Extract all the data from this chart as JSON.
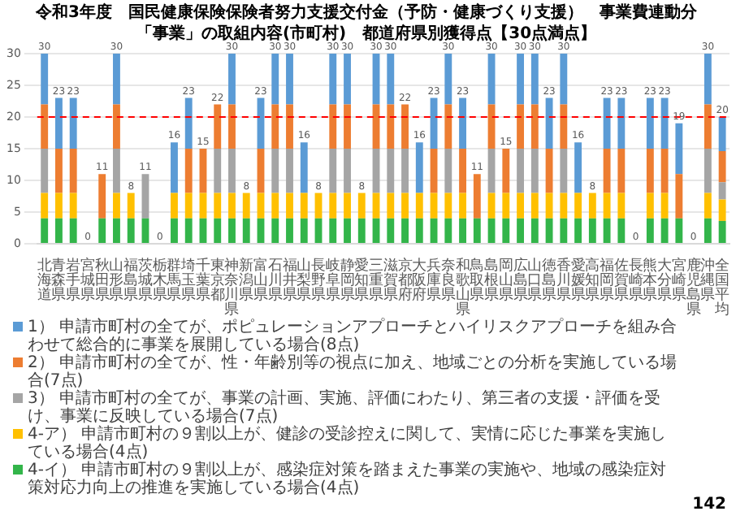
{
  "chart_data": {
    "type": "bar",
    "stacked": true,
    "title": "令和3年度　国民健康保険保険者努力支援交付金（予防・健康づくり支援）　事業費連動分",
    "subtitle": "「事業」の取組内容(市町村)　都道府県別獲得点【30点満点】",
    "categories": [
      "北海道",
      "青森県",
      "岩手県",
      "宮城県",
      "秋田県",
      "山形県",
      "福島県",
      "茨城県",
      "栃木県",
      "群馬県",
      "埼玉県",
      "千葉県",
      "東京都",
      "神奈川県",
      "新潟県",
      "富山県",
      "石川県",
      "福井県",
      "山梨県",
      "長野県",
      "岐阜県",
      "静岡県",
      "愛知県",
      "三重県",
      "滋賀県",
      "京都府",
      "大阪府",
      "兵庫県",
      "奈良県",
      "和歌山県",
      "鳥取県",
      "島根県",
      "岡山県",
      "広島県",
      "山口県",
      "徳島県",
      "香川県",
      "愛媛県",
      "高知県",
      "福岡県",
      "佐賀県",
      "長崎県",
      "熊本県",
      "大分県",
      "宮崎県",
      "鹿児島県",
      "沖縄県",
      "全国平均"
    ],
    "series": [
      {
        "name": "4-イ） 申請市町村の９割以上が、感染症対策を踏まえた事業の実施や、地域の感染症対策対応力向上の推進を実施している場合(4点)",
        "color": "#33b54a",
        "values": [
          4,
          4,
          4,
          0,
          4,
          4,
          4,
          4,
          0,
          4,
          4,
          4,
          4,
          4,
          4,
          4,
          4,
          4,
          4,
          4,
          4,
          4,
          4,
          4,
          4,
          4,
          4,
          4,
          4,
          4,
          4,
          4,
          4,
          4,
          4,
          4,
          4,
          4,
          4,
          4,
          4,
          0,
          4,
          4,
          4,
          0,
          4,
          3.6
        ]
      },
      {
        "name": "4-ア） 申請市町村の９割以上が、健診の受診控えに関して、実情に応じた事業を実施している場合(4点)",
        "color": "#ffc000",
        "values": [
          4,
          4,
          4,
          0,
          0,
          4,
          4,
          0,
          0,
          4,
          4,
          4,
          4,
          4,
          4,
          4,
          4,
          4,
          4,
          4,
          4,
          4,
          4,
          4,
          4,
          4,
          4,
          4,
          4,
          4,
          0,
          4,
          4,
          4,
          4,
          4,
          4,
          4,
          4,
          4,
          4,
          0,
          4,
          4,
          0,
          0,
          4,
          3.4
        ]
      },
      {
        "name": "3） 申請市町村の全てが、事業の計画、実施、評価にわたり、第三者の支援・評価を受け、事業に反映している場合(7点)",
        "color": "#a5a5a5",
        "values": [
          7,
          0,
          0,
          0,
          0,
          7,
          0,
          7,
          0,
          0,
          0,
          0,
          7,
          7,
          0,
          0,
          7,
          7,
          0,
          0,
          7,
          7,
          0,
          7,
          7,
          7,
          0,
          0,
          7,
          0,
          0,
          7,
          0,
          7,
          7,
          0,
          7,
          0,
          0,
          0,
          0,
          0,
          0,
          0,
          0,
          0,
          7,
          2.7
        ]
      },
      {
        "name": "2） 申請市町村の全てが、性・年齢別等の視点に加え、地域ごとの分析を実施している場合(7点)",
        "color": "#ed7d31",
        "values": [
          7,
          7,
          7,
          0,
          7,
          7,
          0,
          0,
          0,
          0,
          7,
          7,
          7,
          7,
          0,
          7,
          7,
          7,
          0,
          0,
          7,
          7,
          0,
          7,
          7,
          7,
          0,
          7,
          7,
          7,
          7,
          7,
          7,
          7,
          7,
          7,
          7,
          0,
          0,
          7,
          7,
          0,
          7,
          7,
          7,
          0,
          7,
          4.9
        ]
      },
      {
        "name": "1） 申請市町村の全てが、ポピュレーションアプローチとハイリスクアプローチを組み合わせて総合的に事業を展開している場合(8点)",
        "color": "#5b9bd5",
        "values": [
          8,
          8,
          8,
          0,
          0,
          8,
          0,
          0,
          0,
          8,
          8,
          0,
          0,
          8,
          0,
          8,
          8,
          8,
          8,
          0,
          8,
          8,
          0,
          8,
          8,
          0,
          8,
          8,
          8,
          8,
          0,
          8,
          0,
          8,
          8,
          8,
          8,
          8,
          0,
          8,
          8,
          0,
          8,
          8,
          8,
          0,
          8,
          5.4
        ]
      }
    ],
    "totals": [
      "30",
      "23",
      "23",
      "0",
      "11",
      "30",
      "8",
      "11",
      "0",
      "16",
      "23",
      "15",
      "22",
      "30",
      "8",
      "23",
      "30",
      "30",
      "16",
      "8",
      "30",
      "30",
      "8",
      "30",
      "30",
      "22",
      "16",
      "23",
      "30",
      "23",
      "11",
      "30",
      "15",
      "30",
      "30",
      "23",
      "30",
      "16",
      "8",
      "23",
      "23",
      "0",
      "23",
      "23",
      "19",
      "0",
      "30",
      "20"
    ],
    "ylim": [
      0,
      30
    ],
    "yticks": [
      0,
      5,
      10,
      15,
      20,
      25,
      30
    ],
    "grid": "y",
    "legend": "bottom",
    "ref_lines": [
      {
        "axis": "y",
        "value": 20,
        "color": "#ff0000",
        "line_style": "dashed"
      }
    ],
    "annotations": [
      "142"
    ]
  }
}
